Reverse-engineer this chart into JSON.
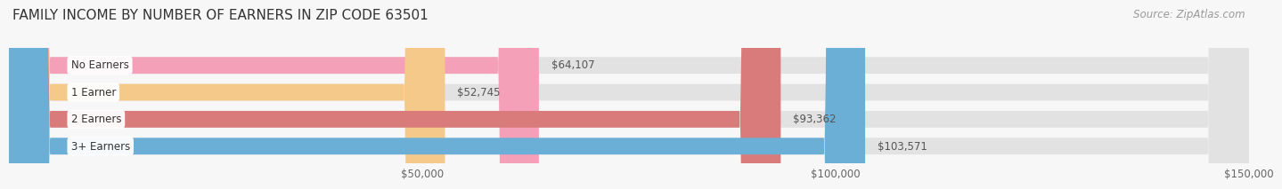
{
  "title": "FAMILY INCOME BY NUMBER OF EARNERS IN ZIP CODE 63501",
  "source": "Source: ZipAtlas.com",
  "categories": [
    "No Earners",
    "1 Earner",
    "2 Earners",
    "3+ Earners"
  ],
  "values": [
    64107,
    52745,
    93362,
    103571
  ],
  "bar_colors": [
    "#f4a0b8",
    "#f5c98a",
    "#d97b7b",
    "#6baed6"
  ],
  "background_color": "#f7f7f7",
  "bar_bg_color": "#e2e2e2",
  "xmin": 0,
  "xmax": 150000,
  "xticks": [
    50000,
    100000,
    150000
  ],
  "xtick_labels": [
    "$50,000",
    "$100,000",
    "$150,000"
  ],
  "title_fontsize": 11,
  "source_fontsize": 8.5,
  "bar_label_fontsize": 8.5,
  "cat_label_fontsize": 8.5
}
